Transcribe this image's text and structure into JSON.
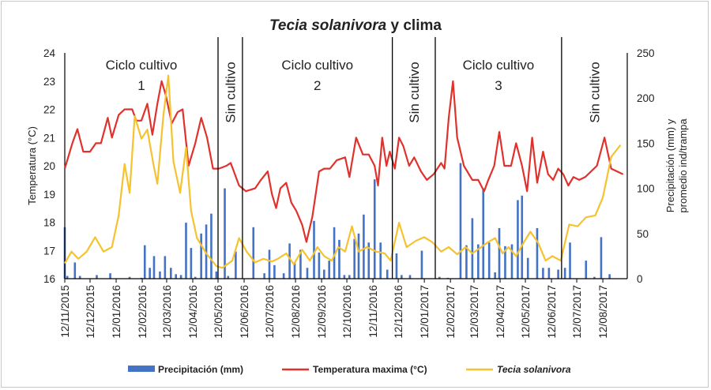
{
  "chart_data": {
    "type": "bar+line",
    "title": {
      "italic_part": "Tecia solanivora",
      "rest": "y clima"
    },
    "y_left_label": "Temperatura (°C)",
    "y_right_label_lines": [
      "Precipitación (mm) y",
      "promedio ind/trampa"
    ],
    "y_left_ticks": [
      "24",
      "23",
      "22",
      "21",
      "20",
      "19",
      "18",
      "17",
      "16"
    ],
    "y_right_ticks": [
      "250",
      "200",
      "150",
      "100",
      "50",
      "0"
    ],
    "ylim_left": [
      16,
      24
    ],
    "ylim_right": [
      0,
      250
    ],
    "x_range": [
      "2015-11-12",
      "2017-09-10"
    ],
    "x_ticks": [
      "12/11/2015",
      "12/12/2015",
      "12/01/2016",
      "12/02/2016",
      "12/03/2016",
      "12/04/2016",
      "12/05/2016",
      "12/06/2016",
      "12/07/2016",
      "12/08/2016",
      "12/09/2016",
      "12/10/2016",
      "12/11/2016",
      "12/12/2016",
      "12/01/2017",
      "12/02/2017",
      "12/03/2017",
      "12/04/2017",
      "12/05/2017",
      "12/06/2017",
      "12/07/2017",
      "12/08/2017"
    ],
    "phase_dividers": [
      "2016-05-12",
      "2016-06-10",
      "2016-12-05",
      "2017-01-25",
      "2017-06-24"
    ],
    "phase_labels": [
      {
        "lines": [
          "Ciclo cultivo",
          "1"
        ],
        "orientation": "horizontal"
      },
      {
        "lines": [
          "Sin cultivo"
        ],
        "orientation": "vertical"
      },
      {
        "lines": [
          "Ciclo cultivo",
          "2"
        ],
        "orientation": "horizontal"
      },
      {
        "lines": [
          "Sin cultivo"
        ],
        "orientation": "vertical"
      },
      {
        "lines": [
          "Ciclo cultivo",
          "3"
        ],
        "orientation": "horizontal"
      },
      {
        "lines": [
          "Sin cultivo"
        ],
        "orientation": "vertical"
      }
    ],
    "series": [
      {
        "name": "Precipitación (mm)",
        "type": "bar",
        "axis": "right",
        "color": "#4472c4",
        "points": [
          [
            "2015-11-12",
            57
          ],
          [
            "2015-11-15",
            3
          ],
          [
            "2015-11-24",
            18
          ],
          [
            "2015-11-30",
            3
          ],
          [
            "2015-12-20",
            4
          ],
          [
            "2016-01-05",
            6
          ],
          [
            "2016-01-28",
            2
          ],
          [
            "2016-02-11",
            1
          ],
          [
            "2016-02-15",
            37
          ],
          [
            "2016-02-21",
            12
          ],
          [
            "2016-02-26",
            25
          ],
          [
            "2016-03-04",
            8
          ],
          [
            "2016-03-10",
            25
          ],
          [
            "2016-03-17",
            12
          ],
          [
            "2016-03-23",
            5
          ],
          [
            "2016-03-29",
            4
          ],
          [
            "2016-04-04",
            62
          ],
          [
            "2016-04-10",
            34
          ],
          [
            "2016-04-15",
            2
          ],
          [
            "2016-04-22",
            50
          ],
          [
            "2016-04-28",
            60
          ],
          [
            "2016-05-04",
            72
          ],
          [
            "2016-05-10",
            8
          ],
          [
            "2016-05-20",
            100
          ],
          [
            "2016-05-24",
            3
          ],
          [
            "2016-06-02",
            30
          ],
          [
            "2016-06-23",
            57
          ],
          [
            "2016-07-06",
            6
          ],
          [
            "2016-07-12",
            32
          ],
          [
            "2016-07-18",
            15
          ],
          [
            "2016-07-29",
            6
          ],
          [
            "2016-08-05",
            39
          ],
          [
            "2016-08-11",
            18
          ],
          [
            "2016-08-18",
            32
          ],
          [
            "2016-08-26",
            12
          ],
          [
            "2016-09-03",
            64
          ],
          [
            "2016-09-09",
            29
          ],
          [
            "2016-09-15",
            10
          ],
          [
            "2016-09-21",
            20
          ],
          [
            "2016-09-27",
            57
          ],
          [
            "2016-10-03",
            43
          ],
          [
            "2016-10-09",
            4
          ],
          [
            "2016-10-15",
            4
          ],
          [
            "2016-10-21",
            44
          ],
          [
            "2016-10-26",
            50
          ],
          [
            "2016-11-01",
            71
          ],
          [
            "2016-11-07",
            40
          ],
          [
            "2016-11-14",
            110
          ],
          [
            "2016-11-21",
            40
          ],
          [
            "2016-11-29",
            10
          ],
          [
            "2016-12-10",
            28
          ],
          [
            "2016-12-16",
            4
          ],
          [
            "2016-12-26",
            4
          ],
          [
            "2017-01-09",
            31
          ],
          [
            "2017-01-30",
            2
          ],
          [
            "2017-02-09",
            1
          ],
          [
            "2017-02-24",
            128
          ],
          [
            "2017-03-03",
            37
          ],
          [
            "2017-03-10",
            67
          ],
          [
            "2017-03-17",
            38
          ],
          [
            "2017-03-23",
            100
          ],
          [
            "2017-03-30",
            40
          ],
          [
            "2017-04-06",
            7
          ],
          [
            "2017-04-11",
            56
          ],
          [
            "2017-04-18",
            36
          ],
          [
            "2017-04-26",
            38
          ],
          [
            "2017-05-03",
            87
          ],
          [
            "2017-05-08",
            92
          ],
          [
            "2017-05-15",
            23
          ],
          [
            "2017-05-26",
            56
          ],
          [
            "2017-06-02",
            12
          ],
          [
            "2017-06-09",
            12
          ],
          [
            "2017-06-20",
            10
          ],
          [
            "2017-06-28",
            12
          ],
          [
            "2017-07-04",
            40
          ],
          [
            "2017-07-23",
            20
          ],
          [
            "2017-08-02",
            2
          ],
          [
            "2017-08-10",
            46
          ],
          [
            "2017-08-20",
            5
          ]
        ]
      },
      {
        "name": "Temperatura maxima (°C)",
        "type": "line",
        "axis": "left",
        "color": "#e0322d",
        "points": [
          [
            "2015-11-12",
            19.9
          ],
          [
            "2015-11-21",
            20.8
          ],
          [
            "2015-11-27",
            21.3
          ],
          [
            "2015-12-04",
            20.5
          ],
          [
            "2015-12-12",
            20.5
          ],
          [
            "2015-12-19",
            20.8
          ],
          [
            "2015-12-25",
            20.8
          ],
          [
            "2016-01-02",
            21.7
          ],
          [
            "2016-01-07",
            21.0
          ],
          [
            "2016-01-15",
            21.8
          ],
          [
            "2016-01-22",
            22.0
          ],
          [
            "2016-01-31",
            22.0
          ],
          [
            "2016-02-05",
            21.6
          ],
          [
            "2016-02-11",
            21.6
          ],
          [
            "2016-02-18",
            22.2
          ],
          [
            "2016-02-24",
            21.1
          ],
          [
            "2016-03-01",
            22.2
          ],
          [
            "2016-03-06",
            23.0
          ],
          [
            "2016-03-11",
            22.5
          ],
          [
            "2016-03-18",
            21.5
          ],
          [
            "2016-03-25",
            21.9
          ],
          [
            "2016-03-31",
            22.0
          ],
          [
            "2016-04-07",
            20.0
          ],
          [
            "2016-04-15",
            20.8
          ],
          [
            "2016-04-22",
            21.7
          ],
          [
            "2016-04-29",
            21.0
          ],
          [
            "2016-05-06",
            19.9
          ],
          [
            "2016-05-13",
            19.9
          ],
          [
            "2016-05-22",
            20.0
          ],
          [
            "2016-05-27",
            20.1
          ],
          [
            "2016-06-06",
            19.3
          ],
          [
            "2016-06-14",
            19.1
          ],
          [
            "2016-06-25",
            19.2
          ],
          [
            "2016-07-02",
            19.5
          ],
          [
            "2016-07-10",
            19.8
          ],
          [
            "2016-07-15",
            19.0
          ],
          [
            "2016-07-20",
            18.5
          ],
          [
            "2016-07-25",
            19.2
          ],
          [
            "2016-08-01",
            19.4
          ],
          [
            "2016-08-07",
            18.7
          ],
          [
            "2016-08-13",
            18.4
          ],
          [
            "2016-08-20",
            17.9
          ],
          [
            "2016-08-25",
            17.3
          ],
          [
            "2016-09-01",
            18.2
          ],
          [
            "2016-09-09",
            19.8
          ],
          [
            "2016-09-15",
            19.9
          ],
          [
            "2016-09-22",
            19.9
          ],
          [
            "2016-09-30",
            20.2
          ],
          [
            "2016-10-10",
            20.3
          ],
          [
            "2016-10-15",
            19.6
          ],
          [
            "2016-10-23",
            21.0
          ],
          [
            "2016-10-31",
            20.4
          ],
          [
            "2016-11-07",
            20.4
          ],
          [
            "2016-11-14",
            20.0
          ],
          [
            "2016-11-18",
            19.3
          ],
          [
            "2016-11-23",
            21.0
          ],
          [
            "2016-11-28",
            20.0
          ],
          [
            "2016-12-02",
            20.5
          ],
          [
            "2016-12-08",
            19.9
          ],
          [
            "2016-12-13",
            21.0
          ],
          [
            "2016-12-18",
            20.7
          ],
          [
            "2016-12-25",
            20.0
          ],
          [
            "2016-12-31",
            20.3
          ],
          [
            "2017-01-08",
            19.8
          ],
          [
            "2017-01-15",
            19.5
          ],
          [
            "2017-01-23",
            19.7
          ],
          [
            "2017-02-01",
            20.1
          ],
          [
            "2017-02-05",
            19.9
          ],
          [
            "2017-02-10",
            21.7
          ],
          [
            "2017-02-15",
            23.0
          ],
          [
            "2017-02-20",
            21.0
          ],
          [
            "2017-02-28",
            20.0
          ],
          [
            "2017-03-10",
            19.5
          ],
          [
            "2017-03-17",
            19.5
          ],
          [
            "2017-03-24",
            19.1
          ],
          [
            "2017-03-29",
            19.5
          ],
          [
            "2017-04-05",
            20.0
          ],
          [
            "2017-04-11",
            21.2
          ],
          [
            "2017-04-17",
            20.0
          ],
          [
            "2017-04-25",
            20.0
          ],
          [
            "2017-05-01",
            20.8
          ],
          [
            "2017-05-08",
            20.0
          ],
          [
            "2017-05-14",
            19.1
          ],
          [
            "2017-05-20",
            21.0
          ],
          [
            "2017-05-26",
            19.4
          ],
          [
            "2017-06-02",
            20.5
          ],
          [
            "2017-06-08",
            19.7
          ],
          [
            "2017-06-14",
            19.5
          ],
          [
            "2017-06-20",
            19.9
          ],
          [
            "2017-06-26",
            19.7
          ],
          [
            "2017-07-02",
            19.3
          ],
          [
            "2017-07-08",
            19.6
          ],
          [
            "2017-07-15",
            19.5
          ],
          [
            "2017-07-22",
            19.6
          ],
          [
            "2017-08-05",
            20.0
          ],
          [
            "2017-08-14",
            21.0
          ],
          [
            "2017-08-22",
            19.9
          ],
          [
            "2017-09-05",
            19.7
          ]
        ]
      },
      {
        "name": "Tecia solanivora",
        "type": "line",
        "axis": "right",
        "color": "#f5c231",
        "points": [
          [
            "2015-11-12",
            17
          ],
          [
            "2015-11-20",
            30
          ],
          [
            "2015-11-28",
            22
          ],
          [
            "2015-12-08",
            30
          ],
          [
            "2015-12-18",
            46
          ],
          [
            "2015-12-28",
            30
          ],
          [
            "2016-01-07",
            35
          ],
          [
            "2016-01-15",
            70
          ],
          [
            "2016-01-22",
            127
          ],
          [
            "2016-01-28",
            95
          ],
          [
            "2016-02-03",
            180
          ],
          [
            "2016-02-11",
            155
          ],
          [
            "2016-02-18",
            165
          ],
          [
            "2016-02-25",
            128
          ],
          [
            "2016-03-01",
            105
          ],
          [
            "2016-03-08",
            180
          ],
          [
            "2016-03-14",
            225
          ],
          [
            "2016-03-20",
            130
          ],
          [
            "2016-03-28",
            95
          ],
          [
            "2016-04-04",
            145
          ],
          [
            "2016-04-10",
            75
          ],
          [
            "2016-04-17",
            45
          ],
          [
            "2016-04-28",
            28
          ],
          [
            "2016-05-10",
            14
          ],
          [
            "2016-05-17",
            12
          ],
          [
            "2016-05-29",
            20
          ],
          [
            "2016-06-06",
            45
          ],
          [
            "2016-06-15",
            30
          ],
          [
            "2016-06-25",
            18
          ],
          [
            "2016-07-05",
            22
          ],
          [
            "2016-07-15",
            19
          ],
          [
            "2016-07-22",
            22
          ],
          [
            "2016-08-01",
            28
          ],
          [
            "2016-08-10",
            16
          ],
          [
            "2016-08-20",
            32
          ],
          [
            "2016-08-29",
            20
          ],
          [
            "2016-09-07",
            35
          ],
          [
            "2016-09-15",
            25
          ],
          [
            "2016-09-24",
            20
          ],
          [
            "2016-10-02",
            35
          ],
          [
            "2016-10-10",
            30
          ],
          [
            "2016-10-18",
            58
          ],
          [
            "2016-10-26",
            30
          ],
          [
            "2016-11-05",
            35
          ],
          [
            "2016-11-16",
            30
          ],
          [
            "2016-11-26",
            28
          ],
          [
            "2016-12-03",
            20
          ],
          [
            "2016-12-13",
            62
          ],
          [
            "2016-12-22",
            35
          ],
          [
            "2017-01-02",
            42
          ],
          [
            "2017-01-12",
            46
          ],
          [
            "2017-01-22",
            40
          ],
          [
            "2017-02-01",
            30
          ],
          [
            "2017-02-10",
            35
          ],
          [
            "2017-02-20",
            27
          ],
          [
            "2017-03-02",
            35
          ],
          [
            "2017-03-10",
            28
          ],
          [
            "2017-03-19",
            34
          ],
          [
            "2017-03-28",
            40
          ],
          [
            "2017-04-06",
            45
          ],
          [
            "2017-04-15",
            28
          ],
          [
            "2017-04-22",
            35
          ],
          [
            "2017-05-01",
            25
          ],
          [
            "2017-05-10",
            40
          ],
          [
            "2017-05-18",
            52
          ],
          [
            "2017-05-27",
            40
          ],
          [
            "2017-06-05",
            20
          ],
          [
            "2017-06-13",
            25
          ],
          [
            "2017-06-23",
            20
          ],
          [
            "2017-07-03",
            60
          ],
          [
            "2017-07-13",
            58
          ],
          [
            "2017-07-23",
            68
          ],
          [
            "2017-08-03",
            70
          ],
          [
            "2017-08-12",
            90
          ],
          [
            "2017-08-22",
            135
          ],
          [
            "2017-09-02",
            148
          ]
        ]
      }
    ],
    "legend_position": "bottom"
  }
}
